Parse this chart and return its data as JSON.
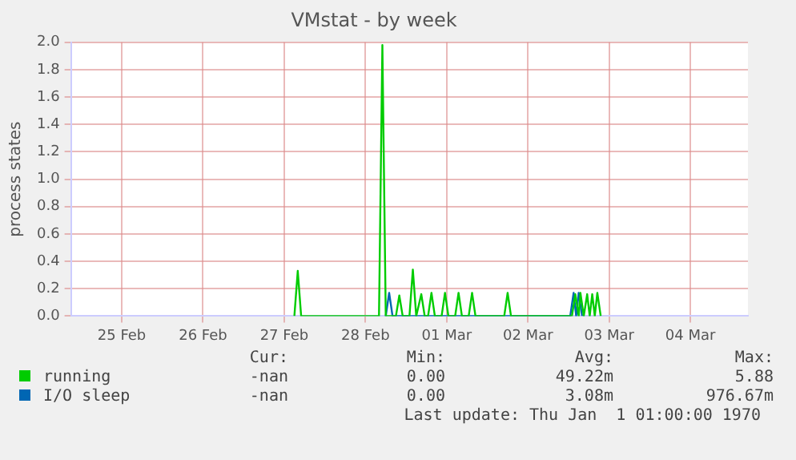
{
  "chart_data": {
    "type": "line",
    "title": "VMstat - by week",
    "ylabel": "process states",
    "xlim": [
      "--02-24T21:00",
      "--03-05T05:00"
    ],
    "xticks": [
      {
        "value": "--02-25T12:00",
        "label": "25 Feb"
      },
      {
        "value": "--02-26T12:00",
        "label": "26 Feb"
      },
      {
        "value": "--02-27T12:00",
        "label": "27 Feb"
      },
      {
        "value": "--02-28T12:00",
        "label": "28 Feb"
      },
      {
        "value": "--03-01T12:00",
        "label": "01 Mar"
      },
      {
        "value": "--03-02T12:00",
        "label": "02 Mar"
      },
      {
        "value": "--03-03T12:00",
        "label": "03 Mar"
      },
      {
        "value": "--03-04T12:00",
        "label": "04 Mar"
      }
    ],
    "ylim": [
      0,
      2
    ],
    "yticks": [
      {
        "value": 0,
        "label": "0.0"
      },
      {
        "value": 0.2,
        "label": "0.2"
      },
      {
        "value": 0.4,
        "label": "0.4"
      },
      {
        "value": 0.6,
        "label": "0.6"
      },
      {
        "value": 0.8,
        "label": "0.8"
      },
      {
        "value": 1,
        "label": "1.0"
      },
      {
        "value": 1.2,
        "label": "1.2"
      },
      {
        "value": 1.4,
        "label": "1.4"
      },
      {
        "value": 1.6,
        "label": "1.6"
      },
      {
        "value": 1.8,
        "label": "1.8"
      },
      {
        "value": 2,
        "label": "2.0"
      }
    ],
    "grid": true,
    "legend": "bottom",
    "series": [
      {
        "name": "running",
        "color": "#00cc00",
        "x": [
          "--02-27T15:00",
          "--02-27T16:00",
          "--02-27T17:00",
          "--02-28T16:00",
          "--02-28T17:00",
          "--02-28T18:00",
          "--02-28T21:00",
          "--02-28T22:00",
          "--02-28T23:00",
          "--03-01T01:00",
          "--03-01T02:00",
          "--03-01T03:00",
          "--03-01T04:30",
          "--03-01T05:30",
          "--03-01T06:30",
          "--03-01T07:30",
          "--03-01T08:30",
          "--03-01T10:30",
          "--03-01T11:30",
          "--03-01T12:30",
          "--03-01T14:30",
          "--03-01T15:30",
          "--03-01T16:30",
          "--03-01T18:30",
          "--03-01T19:30",
          "--03-01T20:30",
          "--03-02T05:00",
          "--03-02T06:00",
          "--03-02T07:00",
          "--03-03T01:00",
          "--03-03T02:00",
          "--03-03T03:00",
          "--03-03T03:30",
          "--03-03T04:30",
          "--03-03T05:30",
          "--03-03T06:15",
          "--03-03T07:00",
          "--03-03T07:45",
          "--03-03T08:30",
          "--03-03T09:30"
        ],
        "values": [
          0,
          0.33,
          0,
          0,
          1.98,
          0,
          0,
          0.15,
          0,
          0,
          0.34,
          0,
          0.16,
          0,
          0,
          0.17,
          0,
          0,
          0.17,
          0,
          0,
          0.17,
          0,
          0,
          0.17,
          0,
          0,
          0.17,
          0,
          0,
          0.16,
          0,
          0.17,
          0,
          0.16,
          0,
          0.16,
          0,
          0.17,
          0
        ]
      },
      {
        "name": "I/O sleep",
        "color": "#0066b3",
        "x": [
          "--02-28T18:00",
          "--02-28T19:00",
          "--02-28T20:00",
          "--03-03T00:30",
          "--03-03T01:30",
          "--03-03T02:15",
          "--03-03T03:00",
          "--03-03T04:00"
        ],
        "values": [
          0,
          0.17,
          0,
          0,
          0.17,
          0,
          0.17,
          0
        ]
      }
    ],
    "annotations": [
      "Cur:",
      "Min:",
      "Avg:",
      "Max:",
      "-nan",
      "0.00",
      "49.22m",
      "5.88",
      "-nan",
      "0.00",
      "3.08m",
      "976.67m",
      "Last update: Thu Jan  1 01:00:00 1970"
    ]
  }
}
